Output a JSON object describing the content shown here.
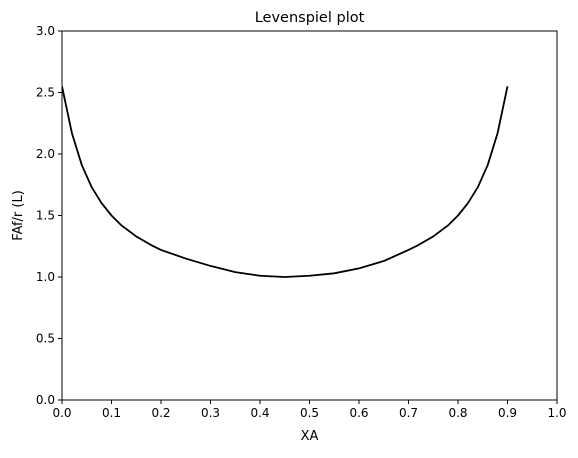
{
  "chart_data": {
    "type": "line",
    "title": "Levenspiel plot",
    "xlabel": "XA",
    "ylabel": "FAf/r (L)",
    "xlim": [
      0.0,
      1.0
    ],
    "ylim": [
      0.0,
      3.0
    ],
    "xticks": [
      "0.0",
      "0.1",
      "0.2",
      "0.3",
      "0.4",
      "0.5",
      "0.6",
      "0.7",
      "0.8",
      "0.9",
      "1.0"
    ],
    "yticks": [
      "0.0",
      "0.5",
      "1.0",
      "1.5",
      "2.0",
      "2.5",
      "3.0"
    ],
    "grid": false,
    "line_color": "#000000",
    "series": [
      {
        "x": [
          0.0,
          0.02,
          0.04,
          0.06,
          0.08,
          0.1,
          0.12,
          0.15,
          0.18,
          0.2,
          0.25,
          0.3,
          0.35,
          0.4,
          0.45,
          0.5,
          0.55,
          0.6,
          0.65,
          0.7,
          0.72,
          0.75,
          0.78,
          0.8,
          0.82,
          0.84,
          0.86,
          0.88,
          0.9
        ],
        "y": [
          2.55,
          2.17,
          1.91,
          1.73,
          1.6,
          1.5,
          1.42,
          1.33,
          1.26,
          1.22,
          1.15,
          1.09,
          1.04,
          1.01,
          1.0,
          1.01,
          1.03,
          1.07,
          1.13,
          1.22,
          1.26,
          1.33,
          1.42,
          1.5,
          1.6,
          1.73,
          1.91,
          2.17,
          2.55
        ]
      }
    ]
  }
}
